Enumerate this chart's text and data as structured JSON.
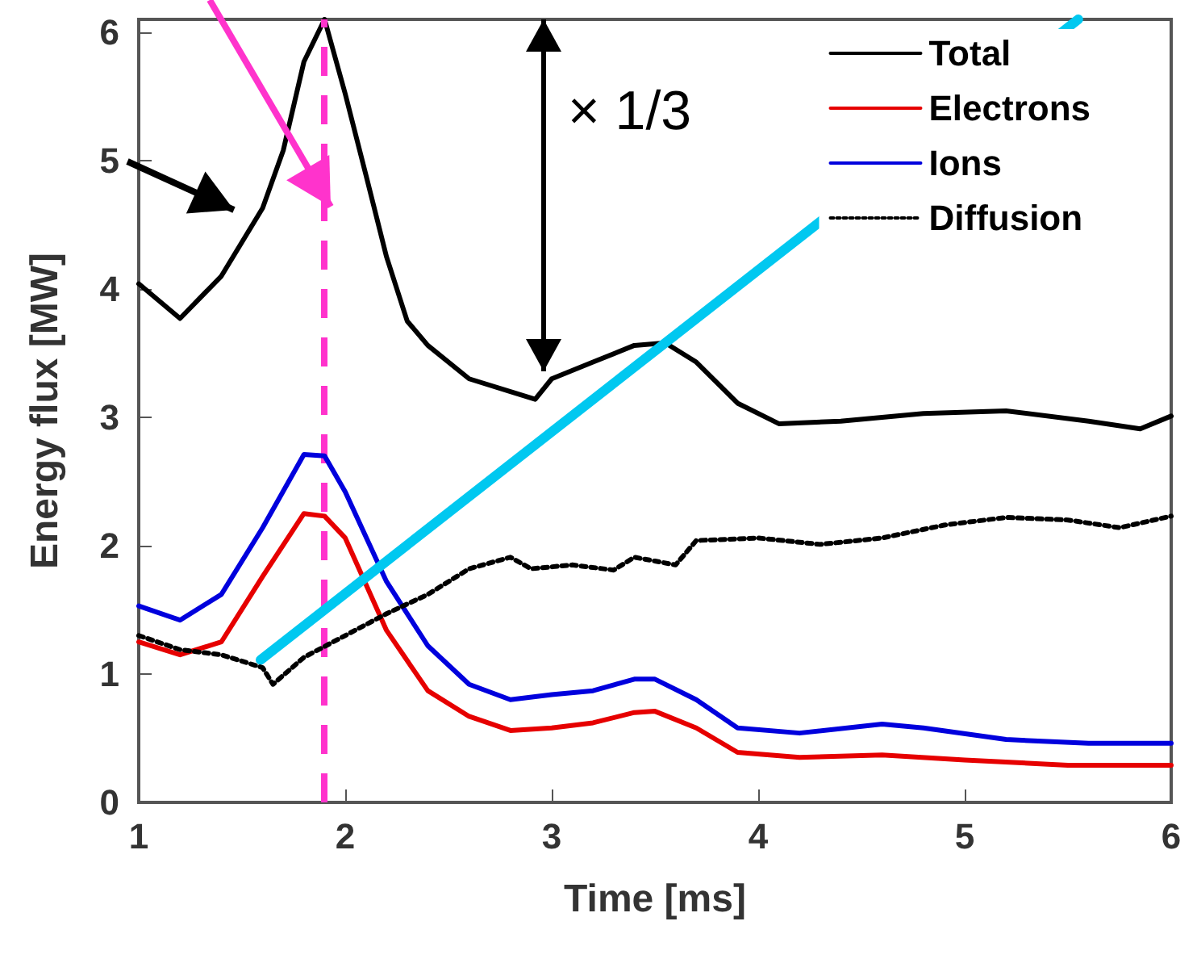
{
  "chart_data": {
    "type": "line",
    "xlabel": "Time [ms]",
    "ylabel": "Energy flux [MW]",
    "xlim": [
      1,
      6
    ],
    "ylim": [
      0,
      6.1
    ],
    "xticks": [
      1,
      2,
      3,
      4,
      5,
      6
    ],
    "yticks": [
      0,
      1,
      2,
      3,
      4,
      5,
      6
    ],
    "grid": false,
    "legend": "top right",
    "marker": "none",
    "ref_lines": [
      {
        "axis": "x",
        "value": 1.9,
        "color": "#ff33cc",
        "line_style": "dashed"
      }
    ],
    "annotations": [
      "× 1/3"
    ],
    "series": [
      {
        "name": "Total",
        "color": "#000000",
        "line_style": "solid",
        "x": [
          1,
          1.2,
          1.4,
          1.6,
          1.7,
          1.8,
          1.9,
          2.0,
          2.1,
          2.2,
          2.3,
          2.4,
          2.6,
          2.8,
          2.92,
          3.0,
          3.2,
          3.4,
          3.55,
          3.7,
          3.9,
          4.1,
          4.4,
          4.8,
          5.2,
          5.6,
          5.85,
          6.0
        ],
        "values": [
          4.04,
          3.77,
          4.1,
          4.63,
          5.08,
          5.77,
          6.1,
          5.52,
          4.89,
          4.25,
          3.75,
          3.56,
          3.3,
          3.2,
          3.14,
          3.3,
          3.43,
          3.56,
          3.58,
          3.43,
          3.11,
          2.95,
          2.97,
          3.03,
          3.05,
          2.97,
          2.91,
          3.01
        ]
      },
      {
        "name": "Electrons",
        "color": "#e60000",
        "line_style": "solid",
        "x": [
          1,
          1.2,
          1.4,
          1.6,
          1.8,
          1.9,
          2.0,
          2.2,
          2.4,
          2.6,
          2.8,
          3.0,
          3.2,
          3.4,
          3.5,
          3.7,
          3.9,
          4.2,
          4.6,
          5.0,
          5.5,
          6.0
        ],
        "values": [
          1.25,
          1.15,
          1.25,
          1.76,
          2.25,
          2.23,
          2.06,
          1.34,
          0.87,
          0.67,
          0.56,
          0.58,
          0.62,
          0.7,
          0.71,
          0.58,
          0.39,
          0.35,
          0.37,
          0.33,
          0.29,
          0.29
        ]
      },
      {
        "name": "Ions",
        "color": "#0000dd",
        "line_style": "solid",
        "x": [
          1,
          1.2,
          1.4,
          1.6,
          1.8,
          1.9,
          2.0,
          2.2,
          2.4,
          2.6,
          2.8,
          3.0,
          3.2,
          3.4,
          3.5,
          3.7,
          3.9,
          4.2,
          4.6,
          4.8,
          5.2,
          5.6,
          6.0
        ],
        "values": [
          1.53,
          1.42,
          1.62,
          2.14,
          2.71,
          2.7,
          2.42,
          1.72,
          1.22,
          0.92,
          0.8,
          0.84,
          0.87,
          0.96,
          0.96,
          0.8,
          0.58,
          0.54,
          0.61,
          0.58,
          0.49,
          0.46,
          0.46
        ]
      },
      {
        "color": "#00c8f0",
        "line_style": "solid",
        "x": [
          1.59,
          5.55
        ],
        "values": [
          1.11,
          6.1
        ]
      },
      {
        "name": "Diffusion",
        "color": "#000000",
        "line_style": "dotted",
        "x": [
          1,
          1.2,
          1.4,
          1.6,
          1.65,
          1.8,
          2.0,
          2.2,
          2.4,
          2.6,
          2.8,
          2.9,
          3.1,
          3.3,
          3.4,
          3.5,
          3.6,
          3.7,
          4.0,
          4.3,
          4.6,
          4.9,
          5.2,
          5.5,
          5.75,
          6.0
        ],
        "values": [
          1.3,
          1.19,
          1.15,
          1.05,
          0.92,
          1.13,
          1.3,
          1.47,
          1.62,
          1.82,
          1.91,
          1.82,
          1.85,
          1.81,
          1.91,
          1.88,
          1.85,
          2.04,
          2.06,
          2.01,
          2.06,
          2.16,
          2.22,
          2.2,
          2.14,
          2.23
        ]
      }
    ]
  }
}
